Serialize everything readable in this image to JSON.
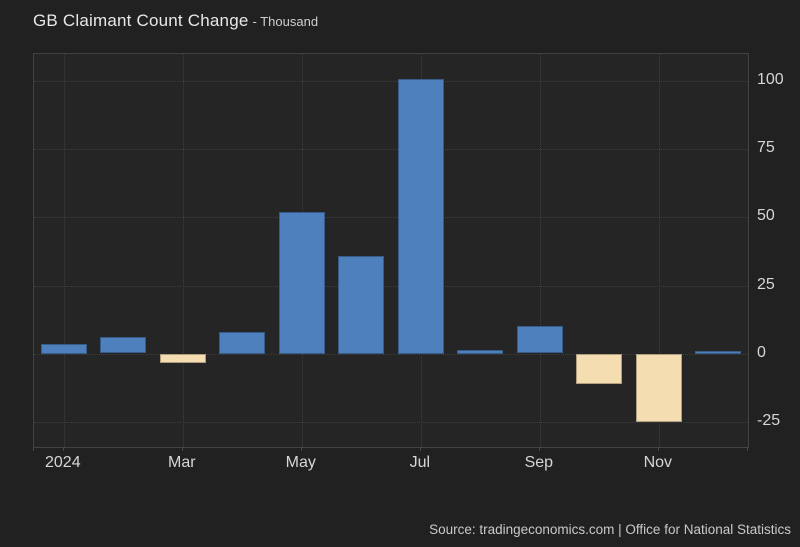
{
  "header": {
    "title": "GB Claimant Count Change",
    "subtitle": "- Thousand"
  },
  "footer": {
    "source": "Source: tradingeconomics.com | Office for National Statistics"
  },
  "chart_data": {
    "type": "bar",
    "title": "GB Claimant Count Change",
    "unit": "Thousand",
    "categories": [
      "Jan 2024",
      "Feb 2024",
      "Mar 2024",
      "Apr 2024",
      "May 2024",
      "Jun 2024",
      "Jul 2024",
      "Aug 2024",
      "Sep 2024",
      "Oct 2024",
      "Nov 2024",
      "Dec 2024"
    ],
    "values": [
      3.5,
      6,
      -3.5,
      8,
      52,
      36,
      101,
      1.5,
      10,
      -11,
      -25,
      1
    ],
    "x_axis": {
      "tick_indices": [
        0,
        2,
        4,
        6,
        8,
        10
      ],
      "tick_labels": [
        "2024",
        "Mar",
        "May",
        "Jul",
        "Sep",
        "Nov"
      ]
    },
    "y_axis": {
      "ticks": [
        100,
        75,
        50,
        25,
        0,
        -25
      ],
      "min": -34.3,
      "max": 110,
      "side": "right"
    },
    "grid": "dotted",
    "legend": "none",
    "colors": {
      "positive_bar": "#4e80bd",
      "negative_bar": "#f4ddb0",
      "background": "#212121",
      "plot_background": "#252525",
      "gridline": "#3e3e3e",
      "text": "#d6d6d6"
    }
  }
}
